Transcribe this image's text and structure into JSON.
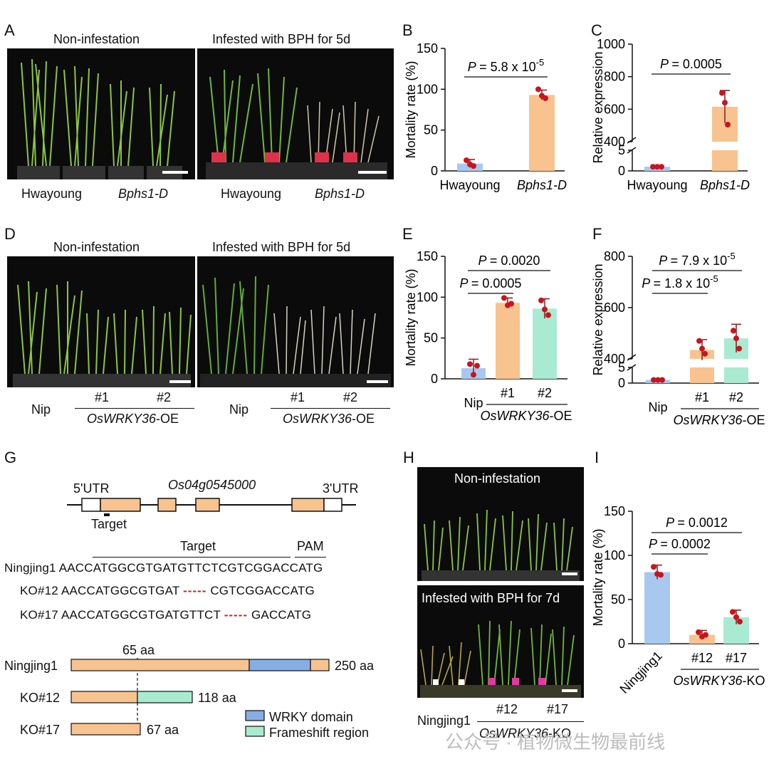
{
  "panels": {
    "A": {
      "letter": "A",
      "left_title": "Non-infestation",
      "right_title": "Infested with BPH for 5d",
      "left_labels": [
        "Hwayoung",
        "Bphs1-D"
      ],
      "right_labels": [
        "Hwayoung",
        "Bphs1-D"
      ]
    },
    "D": {
      "letter": "D",
      "left_title": "Non-infestation",
      "right_title": "Infested with BPH for 5d",
      "nip": "Nip",
      "l1": "#1",
      "l2": "#2",
      "group": "OsWRKY36",
      "group_suffix": "-OE"
    },
    "G": {
      "letter": "G",
      "gene": "Os04g0545000",
      "utr5": "5'UTR",
      "utr3": "3'UTR",
      "target": "Target",
      "pam": "PAM",
      "seq_ning_name": "Ningjing1",
      "seq_ning": "AACCATGGCGTGATGTTCTCGTCGGACCATG",
      "seq_ko12_name": "KO#12",
      "seq_ko12_a": "AACCATGGCGTGAT",
      "seq_ko12_dash": "-----",
      "seq_ko12_b": "CGTCGGACCATG",
      "seq_ko17_name": "KO#17",
      "seq_ko17_a": "AACCATGGCGTGATGTTCT",
      "seq_ko17_dash": "-----",
      "seq_ko17_b": "GACCATG",
      "aa65": "65 aa",
      "prot_ning": "Ningjing1",
      "prot_ning_len": "250 aa",
      "prot_ko12": "KO#12",
      "prot_ko12_len": "118 aa",
      "prot_ko17": "KO#17",
      "prot_ko17_len": "67 aa",
      "legend_wrky": "WRKY domain",
      "legend_frame": "Frameshift region"
    },
    "H": {
      "letter": "H",
      "top_title": "Non-infestation",
      "bottom_title": "Infested with BPH for 7d",
      "ning": "Ningjing1",
      "l12": "#12",
      "l17": "#17",
      "group": "OsWRKY36",
      "group_suffix": "-KO"
    }
  },
  "colors": {
    "blue": "#a9c8f0",
    "orange": "#f8c38f",
    "mint": "#a8ebd2",
    "red": "#c8141e",
    "wrky": "#86aee6",
    "frame": "#a7ecd0"
  },
  "chart_data": [
    {
      "panel": "B",
      "type": "bar",
      "ylabel": "Mortality rate (%)",
      "ylim": [
        0,
        150
      ],
      "yticks": [
        0,
        50,
        100,
        150
      ],
      "categories": [
        "Hwayoung",
        "Bphs1-D"
      ],
      "values": [
        9,
        93
      ],
      "err": [
        5,
        6
      ],
      "points": [
        [
          13,
          8,
          6
        ],
        [
          100,
          92,
          89
        ]
      ],
      "annotations": [
        {
          "text": "P = 5.8 x 10",
          "sup": "-5",
          "between": [
            0,
            1
          ]
        }
      ]
    },
    {
      "panel": "C",
      "type": "bar",
      "ylabel": "Relative expression",
      "broken_axis": true,
      "lower_ticks": [
        0,
        5
      ],
      "upper_ticks": [
        400,
        600,
        800,
        1000
      ],
      "categories": [
        "Hwayoung",
        "Bphs1-D"
      ],
      "values": [
        1,
        615
      ],
      "err": [
        0.5,
        100
      ],
      "points": [
        [
          1,
          1,
          1
        ],
        [
          700,
          640,
          505
        ]
      ],
      "annotations": [
        {
          "text": "P = 0.0005",
          "between": [
            0,
            1
          ]
        }
      ]
    },
    {
      "panel": "E",
      "type": "bar",
      "ylabel": "Mortality rate (%)",
      "ylim": [
        0,
        150
      ],
      "yticks": [
        0,
        50,
        100,
        150
      ],
      "categories": [
        "Nip",
        "#1",
        "#2"
      ],
      "group_label": "OsWRKY36-OE",
      "values": [
        13,
        93,
        86
      ],
      "err": [
        11,
        6,
        12
      ],
      "points": [
        [
          18,
          5,
          16
        ],
        [
          99,
          90,
          92
        ],
        [
          96,
          85,
          78
        ]
      ],
      "annotations": [
        {
          "text": "P = 0.0005",
          "between": [
            0,
            1
          ]
        },
        {
          "text": "P = 0.0020",
          "between": [
            0,
            2
          ]
        }
      ]
    },
    {
      "panel": "F",
      "type": "bar",
      "ylabel": "Relative expression",
      "broken_axis": true,
      "lower_ticks": [
        0,
        5
      ],
      "upper_ticks": [
        400,
        600,
        800
      ],
      "categories": [
        "Nip",
        "#1",
        "#2"
      ],
      "group_label": "OsWRKY36-OE",
      "values": [
        1,
        435,
        480
      ],
      "err": [
        0.5,
        40,
        55
      ],
      "points": [
        [
          1,
          1,
          1
        ],
        [
          470,
          440,
          420
        ],
        [
          510,
          480,
          440
        ]
      ],
      "annotations": [
        {
          "text": "P = 1.8 x 10",
          "sup": "-5",
          "between": [
            0,
            1
          ]
        },
        {
          "text": "P = 7.9 x 10",
          "sup": "-5",
          "between": [
            0,
            2
          ]
        }
      ]
    },
    {
      "panel": "I",
      "type": "bar",
      "ylabel": "Mortality rate (%)",
      "ylim": [
        0,
        150
      ],
      "yticks": [
        0,
        50,
        100,
        150
      ],
      "categories": [
        "Ningjing1",
        "#12",
        "#17"
      ],
      "group_label": "OsWRKY36-KO",
      "values": [
        81,
        10,
        30
      ],
      "err": [
        8,
        5,
        8
      ],
      "points": [
        [
          87,
          79,
          78
        ],
        [
          13,
          8,
          10
        ],
        [
          36,
          30,
          25
        ]
      ],
      "annotations": [
        {
          "text": "P = 0.0002",
          "between": [
            0,
            1
          ]
        },
        {
          "text": "P = 0.0012",
          "between": [
            0,
            2
          ]
        }
      ]
    }
  ],
  "watermark": "公众号 · 植物微生物最前线"
}
